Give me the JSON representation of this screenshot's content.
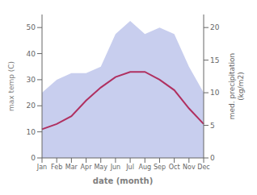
{
  "chart_data": {
    "type": "line",
    "categories": [
      "Jan",
      "Feb",
      "Mar",
      "Apr",
      "May",
      "Jun",
      "Jul",
      "Aug",
      "Sep",
      "Oct",
      "Nov",
      "Dec"
    ],
    "series": [
      {
        "type": "area",
        "axis": "y2",
        "color": "#c8ceee",
        "values": [
          10,
          12,
          13,
          13,
          14,
          19,
          21,
          19,
          20,
          19,
          14,
          10
        ]
      },
      {
        "type": "line",
        "color": "#b03060",
        "values": [
          11,
          13,
          16,
          22,
          27,
          31,
          33,
          33,
          30,
          26,
          19,
          13
        ]
      }
    ],
    "x_label": "date (month)",
    "y_label": "max temp (C)",
    "y2_label": "med. precipitation\n(kg/m2)",
    "ylim": [
      0,
      55
    ],
    "yticks": [
      0,
      10,
      20,
      30,
      40,
      50
    ],
    "y2lim": [
      0,
      22
    ],
    "y2ticks": [
      0,
      5,
      10,
      15,
      20
    ]
  }
}
